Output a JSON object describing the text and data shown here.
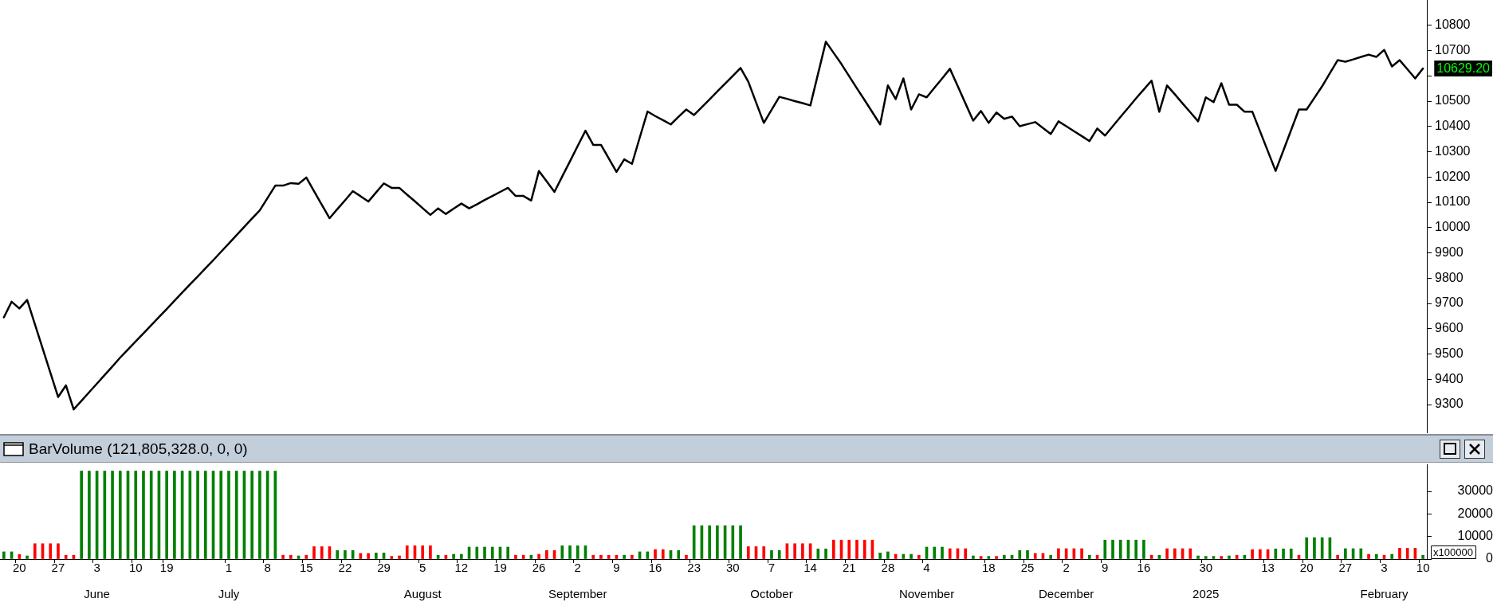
{
  "chart_data": [
    {
      "type": "line",
      "color": "#000000",
      "tick_labels": "y",
      "ylim": [
        9190,
        10900
      ],
      "yticks": [
        9300,
        9400,
        9500,
        9600,
        9700,
        9800,
        9900,
        10000,
        10100,
        10200,
        10300,
        10400,
        10500,
        {
          "value": 10600,
          "label": null
        },
        10700,
        10800
      ],
      "categories": [
        null,
        null,
        null,
        null,
        null,
        null,
        null,
        null,
        null,
        null,
        null,
        null,
        null,
        null,
        null,
        null,
        null,
        null,
        null,
        null,
        null,
        null,
        null,
        null,
        null,
        null,
        null,
        null,
        null,
        null,
        null,
        null,
        null,
        null,
        null,
        null,
        null,
        null,
        null,
        null,
        null,
        null,
        null,
        null,
        null,
        null,
        null,
        null,
        null,
        null,
        null,
        null,
        null,
        null,
        null,
        null,
        null,
        null,
        null,
        null,
        null,
        null,
        null,
        null,
        null,
        null,
        null,
        null,
        null,
        null,
        null,
        null,
        null,
        null,
        null,
        null,
        null,
        null,
        null,
        null,
        null,
        null,
        null,
        null,
        null,
        null,
        null,
        null,
        null,
        null,
        null,
        null,
        null,
        null,
        null,
        null,
        null,
        null,
        null,
        null,
        null,
        null,
        null,
        null,
        null,
        null,
        null,
        null,
        null,
        null,
        null,
        null,
        null,
        null,
        null,
        null,
        null,
        null,
        null,
        null,
        null,
        null,
        null,
        null,
        null,
        null,
        null,
        null,
        null,
        null,
        null,
        null,
        null,
        null,
        null,
        null,
        null,
        null,
        null,
        null,
        null,
        null,
        null,
        null,
        null,
        null,
        null,
        null,
        null,
        null,
        null,
        null,
        null,
        null,
        null,
        null,
        null,
        null,
        null,
        null,
        null,
        null,
        null,
        null,
        null,
        null,
        null,
        null,
        null,
        null,
        null,
        null,
        null,
        null,
        null,
        null,
        null,
        null,
        null,
        null,
        null,
        null,
        null,
        null
      ],
      "values": [
        9645,
        9707,
        9680,
        9714,
        9618,
        9522,
        9426,
        9330,
        9376,
        9281,
        9315,
        9349,
        9383,
        9417,
        9451,
        9486,
        9518,
        9550,
        9582,
        9614,
        9646,
        9678,
        9711,
        9743,
        9775,
        9807,
        9839,
        9871,
        9904,
        9937,
        9970,
        10003,
        10036,
        10068,
        10117,
        10166,
        10166,
        10176,
        10173,
        10198,
        10144,
        10090,
        10037,
        10073,
        10108,
        10144,
        10124,
        10103,
        10139,
        10175,
        10157,
        10157,
        10130,
        10104,
        10077,
        10050,
        10076,
        10054,
        10075,
        10095,
        10076,
        10092,
        10109,
        10125,
        10141,
        10157,
        10125,
        10125,
        10107,
        10224,
        10183,
        10141,
        10202,
        10262,
        10323,
        10383,
        10327,
        10327,
        10274,
        10220,
        10270,
        10252,
        10356,
        10459,
        10441,
        10425,
        10408,
        10438,
        10467,
        10445,
        10476,
        10507,
        10538,
        10569,
        10600,
        10631,
        10577,
        10495,
        10414,
        10466,
        10517,
        10509,
        10500,
        10492,
        10483,
        10609,
        10735,
        10691,
        10647,
        10599,
        10551,
        10504,
        10456,
        10408,
        10562,
        10508,
        10590,
        10467,
        10527,
        10515,
        10553,
        10590,
        10628,
        10560,
        10491,
        10423,
        10461,
        10414,
        10455,
        10430,
        10439,
        10401,
        10409,
        10417,
        10394,
        10370,
        10420,
        10401,
        10381,
        10362,
        10342,
        10392,
        10364,
        10401,
        10438,
        10474,
        10511,
        10546,
        10581,
        10458,
        10562,
        10527,
        10491,
        10456,
        10420,
        10515,
        10496,
        10571,
        10486,
        10486,
        10458,
        10458,
        10380,
        10302,
        10224,
        10305,
        10386,
        10467,
        10467,
        10513,
        10559,
        10611,
        10662,
        10656,
        10665,
        10675,
        10684,
        10675,
        10703,
        10637,
        10662,
        10626,
        10590,
        10629.2
      ],
      "annotations": [
        "10629.20"
      ]
    },
    {
      "type": "bar",
      "title": "BarVolume (121,805,328.0, 0, 0)",
      "ylim": [
        0,
        42000
      ],
      "yticks": [
        0,
        10000,
        20000,
        30000
      ],
      "categories": [
        null,
        null,
        "20",
        null,
        null,
        null,
        null,
        "27",
        null,
        null,
        null,
        null,
        "3\nJune",
        null,
        null,
        null,
        null,
        "10",
        null,
        null,
        null,
        "19",
        null,
        null,
        null,
        null,
        null,
        null,
        null,
        "1\nJuly",
        null,
        null,
        null,
        null,
        "8",
        null,
        null,
        null,
        null,
        "15",
        null,
        null,
        null,
        null,
        "22",
        null,
        null,
        null,
        null,
        "29",
        null,
        null,
        null,
        null,
        "5\nAugust",
        null,
        null,
        null,
        null,
        "12",
        null,
        null,
        null,
        null,
        "19",
        null,
        null,
        null,
        null,
        "26",
        null,
        null,
        null,
        null,
        "2\nSeptember",
        null,
        null,
        null,
        null,
        "9",
        null,
        null,
        null,
        null,
        "16",
        null,
        null,
        null,
        null,
        "23",
        null,
        null,
        null,
        null,
        "30",
        null,
        null,
        null,
        null,
        "7\nOctober",
        null,
        null,
        null,
        null,
        "14",
        null,
        null,
        null,
        null,
        "21",
        null,
        null,
        null,
        null,
        "28",
        null,
        null,
        null,
        null,
        "4\nNovember",
        null,
        null,
        null,
        null,
        null,
        null,
        null,
        "18",
        null,
        null,
        null,
        null,
        "25",
        null,
        null,
        null,
        null,
        "2\nDecember",
        null,
        null,
        null,
        null,
        "9",
        null,
        null,
        null,
        null,
        "16",
        null,
        null,
        null,
        null,
        null,
        null,
        null,
        "30\n2025",
        null,
        null,
        null,
        null,
        null,
        null,
        null,
        "13",
        null,
        null,
        null,
        null,
        "20",
        null,
        null,
        null,
        null,
        "27",
        null,
        null,
        null,
        null,
        "3\nFebruary",
        null,
        null,
        null,
        null,
        "10"
      ],
      "values": [
        3200,
        3200,
        2000,
        1400,
        6800,
        6800,
        6800,
        6800,
        1700,
        1700,
        39000,
        39000,
        39000,
        39000,
        39000,
        39000,
        39000,
        39000,
        39000,
        39000,
        39000,
        39000,
        39000,
        39000,
        39000,
        39000,
        39000,
        39000,
        39000,
        39000,
        39000,
        39000,
        39000,
        39000,
        39000,
        39000,
        1700,
        1700,
        1400,
        1700,
        5500,
        5500,
        5500,
        3800,
        3800,
        3800,
        2500,
        2500,
        2700,
        2700,
        1200,
        1400,
        5900,
        5900,
        5900,
        5900,
        1700,
        1700,
        2100,
        2100,
        5300,
        5300,
        5300,
        5300,
        5300,
        5300,
        1700,
        1700,
        1700,
        2100,
        3800,
        3800,
        5900,
        5900,
        5900,
        5900,
        1700,
        1700,
        1700,
        1700,
        1700,
        1700,
        3200,
        3200,
        4200,
        4200,
        3800,
        3800,
        1700,
        14800,
        14800,
        14800,
        14800,
        14800,
        14800,
        14800,
        5500,
        5500,
        5500,
        3800,
        3800,
        6800,
        6800,
        6800,
        6800,
        4500,
        4500,
        8400,
        8400,
        8400,
        8400,
        8400,
        8400,
        2700,
        3200,
        2100,
        2100,
        2100,
        1700,
        5300,
        5300,
        5300,
        4600,
        4600,
        4600,
        1400,
        1200,
        1200,
        1200,
        1700,
        1700,
        3800,
        3800,
        2500,
        2500,
        1700,
        4600,
        4600,
        4600,
        4600,
        1700,
        1700,
        8400,
        8400,
        8400,
        8400,
        8400,
        8400,
        1700,
        1700,
        4600,
        4600,
        4600,
        4600,
        1400,
        1200,
        1200,
        1200,
        1400,
        1700,
        1700,
        4200,
        4200,
        4200,
        4500,
        4500,
        4500,
        1700,
        9500,
        9500,
        9500,
        9500,
        1700,
        4600,
        4600,
        4600,
        2100,
        2100,
        1700,
        2100,
        4800,
        4800,
        4800,
        1700
      ],
      "colors": [
        "#008000",
        "#008000",
        "#ff0000",
        "#008000",
        "#ff0000",
        "#ff0000",
        "#ff0000",
        "#ff0000",
        "#ff0000",
        "#ff0000",
        "#008000",
        "#008000",
        "#008000",
        "#008000",
        "#008000",
        "#008000",
        "#008000",
        "#008000",
        "#008000",
        "#008000",
        "#008000",
        "#008000",
        "#008000",
        "#008000",
        "#008000",
        "#008000",
        "#008000",
        "#008000",
        "#008000",
        "#008000",
        "#008000",
        "#008000",
        "#008000",
        "#008000",
        "#008000",
        "#008000",
        "#ff0000",
        "#ff0000",
        "#008000",
        "#ff0000",
        "#ff0000",
        "#ff0000",
        "#ff0000",
        "#008000",
        "#008000",
        "#008000",
        "#ff0000",
        "#ff0000",
        "#008000",
        "#008000",
        "#ff0000",
        "#ff0000",
        "#ff0000",
        "#ff0000",
        "#ff0000",
        "#ff0000",
        "#008000",
        "#ff0000",
        "#008000",
        "#008000",
        "#008000",
        "#008000",
        "#008000",
        "#008000",
        "#008000",
        "#008000",
        "#ff0000",
        "#ff0000",
        "#008000",
        "#ff0000",
        "#ff0000",
        "#ff0000",
        "#008000",
        "#008000",
        "#008000",
        "#008000",
        "#ff0000",
        "#ff0000",
        "#ff0000",
        "#ff0000",
        "#008000",
        "#ff0000",
        "#008000",
        "#008000",
        "#ff0000",
        "#ff0000",
        "#008000",
        "#008000",
        "#ff0000",
        "#008000",
        "#008000",
        "#008000",
        "#008000",
        "#008000",
        "#008000",
        "#008000",
        "#ff0000",
        "#ff0000",
        "#ff0000",
        "#008000",
        "#008000",
        "#ff0000",
        "#ff0000",
        "#ff0000",
        "#ff0000",
        "#008000",
        "#008000",
        "#ff0000",
        "#ff0000",
        "#ff0000",
        "#ff0000",
        "#ff0000",
        "#ff0000",
        "#008000",
        "#008000",
        "#ff0000",
        "#008000",
        "#008000",
        "#ff0000",
        "#008000",
        "#008000",
        "#008000",
        "#ff0000",
        "#ff0000",
        "#ff0000",
        "#008000",
        "#ff0000",
        "#008000",
        "#ff0000",
        "#008000",
        "#008000",
        "#008000",
        "#008000",
        "#ff0000",
        "#ff0000",
        "#008000",
        "#ff0000",
        "#ff0000",
        "#ff0000",
        "#ff0000",
        "#008000",
        "#ff0000",
        "#008000",
        "#008000",
        "#008000",
        "#008000",
        "#008000",
        "#008000",
        "#ff0000",
        "#008000",
        "#ff0000",
        "#ff0000",
        "#ff0000",
        "#ff0000",
        "#008000",
        "#008000",
        "#008000",
        "#ff0000",
        "#008000",
        "#ff0000",
        "#008000",
        "#ff0000",
        "#ff0000",
        "#ff0000",
        "#008000",
        "#008000",
        "#008000",
        "#ff0000",
        "#008000",
        "#008000",
        "#008000",
        "#008000",
        "#ff0000",
        "#008000",
        "#008000",
        "#008000",
        "#ff0000",
        "#008000",
        "#ff0000",
        "#008000",
        "#ff0000",
        "#ff0000",
        "#ff0000",
        "#008000"
      ],
      "annotations": [
        "x100000"
      ]
    }
  ]
}
